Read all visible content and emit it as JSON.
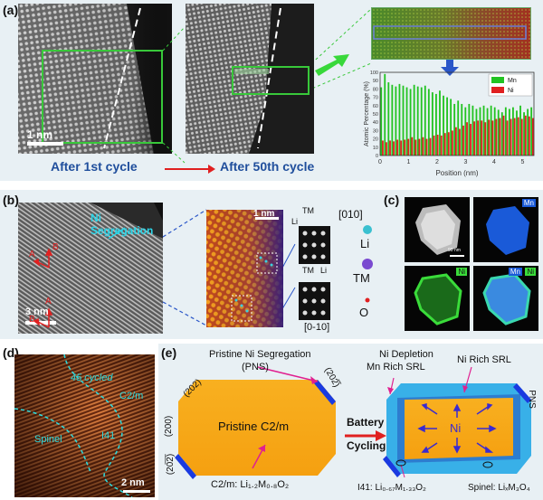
{
  "panel_a": {
    "label": "(a)",
    "scale_bar": "1 nm",
    "caption_left": "After 1st cycle",
    "caption_right": "After 50th cycle",
    "chart_data": {
      "type": "bar",
      "xlabel": "Position (nm)",
      "ylabel": "Atomic Percentage (%)",
      "ylim": [
        0,
        100
      ],
      "xlim": [
        0,
        5.4
      ],
      "xticks": [
        "0",
        "1",
        "2",
        "3",
        "4",
        "5"
      ],
      "yticks": [
        "0",
        "10",
        "20",
        "30",
        "40",
        "50",
        "60",
        "70",
        "80",
        "90",
        "100"
      ],
      "legend_position": "top-right",
      "series": [
        {
          "name": "Mn",
          "color": "#22c322",
          "values": [
            82,
            98,
            88,
            85,
            83,
            86,
            84,
            82,
            80,
            85,
            83,
            82,
            84,
            80,
            76,
            74,
            78,
            72,
            70,
            68,
            62,
            66,
            62,
            58,
            62,
            60,
            56,
            58,
            60,
            57,
            60,
            58,
            55,
            52,
            58,
            56,
            58,
            54,
            60,
            52,
            56,
            58
          ]
        },
        {
          "name": "Ni",
          "color": "#e02020",
          "values": [
            18,
            16,
            18,
            17,
            19,
            18,
            19,
            20,
            22,
            19,
            20,
            22,
            20,
            21,
            24,
            25,
            24,
            27,
            28,
            30,
            34,
            32,
            36,
            40,
            38,
            41,
            42,
            42,
            40,
            43,
            42,
            44,
            45,
            48,
            42,
            44,
            45,
            46,
            44,
            48,
            47,
            45
          ]
        }
      ]
    }
  },
  "panel_b": {
    "label": "(b)",
    "ni_segregation": "Ni Segregation",
    "scale_3nm": "3 nm",
    "scale_1nm": "1 nm",
    "arrow_a": "A",
    "arrow_b": "B",
    "dir_top": "[010]",
    "dir_bottom": "[0-10]",
    "tm": "TM",
    "li": "Li",
    "legend_li": "Li",
    "legend_tm": "TM",
    "legend_o": "O"
  },
  "panel_c": {
    "label": "(c)",
    "mn": "Mn",
    "ni": "Ni",
    "mn_combo": "Mn",
    "ni_combo": "Ni",
    "scale": "90 nm"
  },
  "panel_d": {
    "label": "(d)",
    "cycled": "45 cycled",
    "c2m": "C2/m",
    "spinel": "Spinel",
    "i41": "I41",
    "scale": "2 nm"
  },
  "panel_e": {
    "label": "(e)",
    "pns_title_1": "Pristine Ni Segregation",
    "pns_title_2": "(PNS)",
    "pristine": "Pristine  C2/m",
    "facet_202_top": "(202)",
    "facet_200": "(200)",
    "facet_202_bottom": "(20̅2̅)",
    "facet_202_right": "(202̅)",
    "formula_left": "C2/m: Li₁.₂M₀.₈O₂",
    "battery_1": "Battery",
    "battery_2": "Cycling",
    "ni_depletion": "Ni Depletion",
    "mn_rich": "Mn Rich SRL",
    "ni_rich": "Ni Rich SRL",
    "pns": "PNS",
    "ni": "Ni",
    "i41_formula": "I41: Li₀.₆₇M₁.₃₃O₂",
    "spinel_formula": "Spinel: LiₓM₃O₄"
  }
}
